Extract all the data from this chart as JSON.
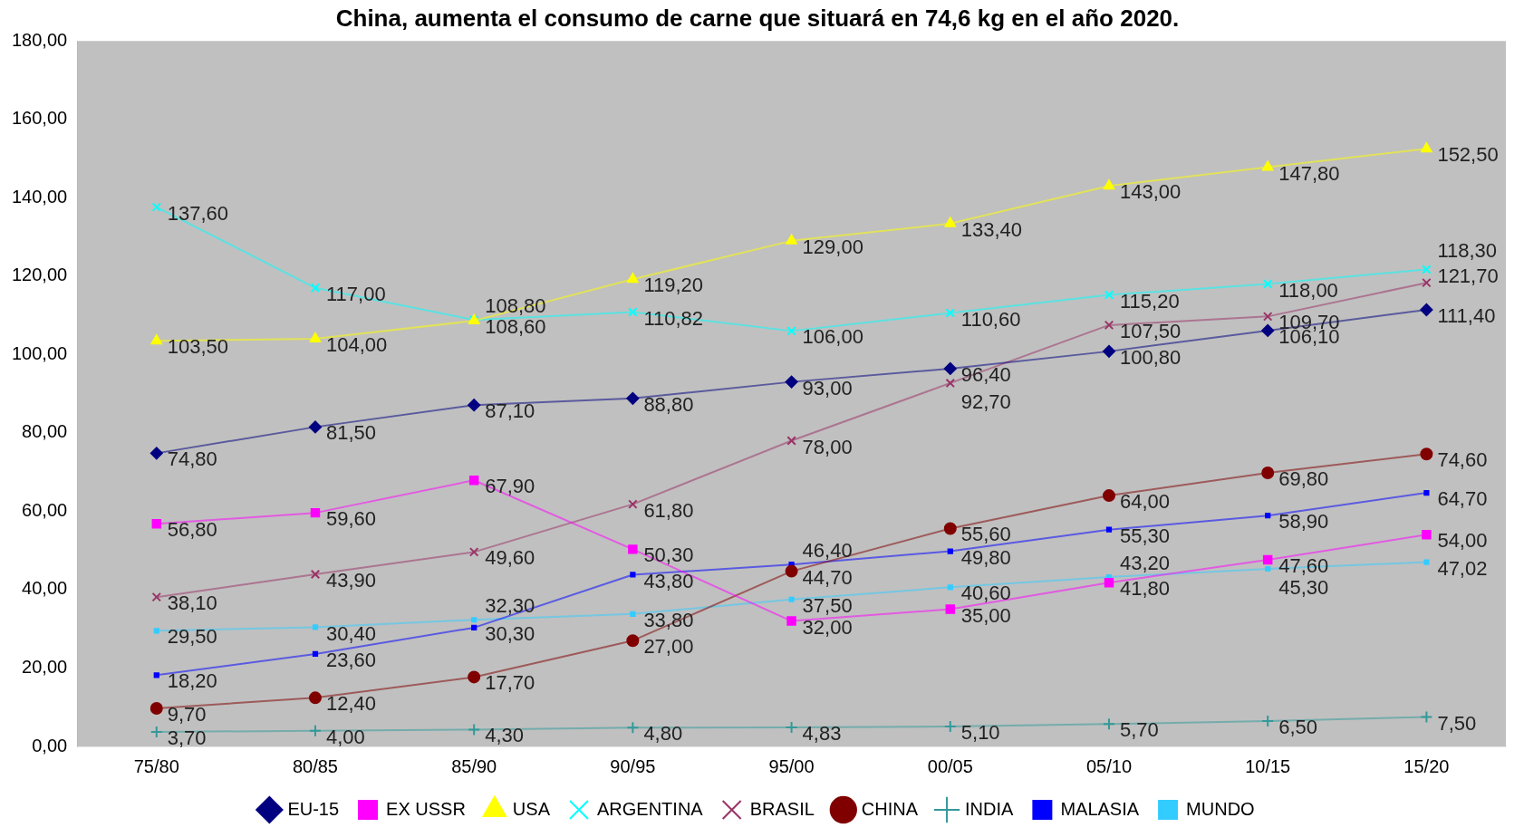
{
  "chart_data": {
    "type": "line",
    "title": "China, aumenta el consumo de carne que situará en 74,6 kg en el año 2020.",
    "categories": [
      "75/80",
      "80/85",
      "85/90",
      "90/95",
      "95/00",
      "00/05",
      "05/10",
      "10/15",
      "15/20"
    ],
    "ylim": [
      0,
      180
    ],
    "yticks": [
      {
        "value": 0,
        "label": "0,00"
      },
      {
        "value": 20,
        "label": "20,00"
      },
      {
        "value": 40,
        "label": "40,00"
      },
      {
        "value": 60,
        "label": "60,00"
      },
      {
        "value": 80,
        "label": "80,00"
      },
      {
        "value": 100,
        "label": "100,00"
      },
      {
        "value": 120,
        "label": "120,00"
      },
      {
        "value": 140,
        "label": "140,00"
      },
      {
        "value": 160,
        "label": "160,00"
      },
      {
        "value": 180,
        "label": "180,00"
      }
    ],
    "grid": false,
    "legend": "bottom",
    "line_style": "solid",
    "series": [
      {
        "name": "EU-15",
        "color": "#000080",
        "marker": "diamond",
        "values": [
          74.8,
          81.5,
          87.1,
          88.8,
          93.0,
          96.4,
          100.8,
          106.1,
          111.4
        ],
        "value_labels": [
          "74,80",
          "81,50",
          "87,10",
          "88,80",
          "93,00",
          "96,40",
          "100,80",
          "106,10",
          "111,40"
        ]
      },
      {
        "name": "EX USSR",
        "color": "#ff00ff",
        "marker": "square",
        "values": [
          56.8,
          59.6,
          67.9,
          50.3,
          32.0,
          35.0,
          41.8,
          47.6,
          54.0
        ],
        "value_labels": [
          "56,80",
          "59,60",
          "67,90",
          "50,30",
          "32,00",
          "35,00",
          "41,80",
          "47,60",
          "54,00"
        ]
      },
      {
        "name": "USA",
        "color": "#ffff00",
        "marker": "triangle",
        "values": [
          103.5,
          104.0,
          108.6,
          119.2,
          129.0,
          133.4,
          143.0,
          147.8,
          152.5
        ],
        "value_labels": [
          "103,50",
          "104,00",
          "108,60",
          "119,20",
          "129,00",
          "133,40",
          "143,00",
          "147,80",
          "152,50"
        ]
      },
      {
        "name": "ARGENTINA",
        "color": "#00ffff",
        "marker": "cross",
        "values": [
          137.6,
          117.0,
          108.8,
          110.82,
          106.0,
          110.6,
          115.2,
          118.0,
          121.7
        ],
        "value_labels": [
          "137,60",
          "117,00",
          "108,80",
          "110,82",
          "106,00",
          "110,60",
          "115,20",
          "118,00",
          "121,70"
        ]
      },
      {
        "name": "BRASIL",
        "color": "#993366",
        "marker": "cross",
        "values": [
          38.1,
          43.9,
          49.6,
          61.8,
          78.0,
          92.7,
          107.5,
          109.7,
          118.3
        ],
        "value_labels": [
          "38,10",
          "43,90",
          "49,60",
          "61,80",
          "78,00",
          "92,70",
          "107,50",
          "109,70",
          "118,30"
        ]
      },
      {
        "name": "CHINA",
        "color": "#800000",
        "marker": "circle",
        "values": [
          9.7,
          12.4,
          17.7,
          27.0,
          44.7,
          55.6,
          64.0,
          69.8,
          74.6
        ],
        "value_labels": [
          "9,70",
          "12,40",
          "17,70",
          "27,00",
          "44,70",
          "55,60",
          "64,00",
          "69,80",
          "74,60"
        ]
      },
      {
        "name": "INDIA",
        "color": "#339999",
        "marker": "plus",
        "values": [
          3.7,
          4.0,
          4.3,
          4.8,
          4.83,
          5.1,
          5.7,
          6.5,
          7.5
        ],
        "value_labels": [
          "3,70",
          "4,00",
          "4,30",
          "4,80",
          "4,83",
          "5,10",
          "5,70",
          "6,50",
          "7,50"
        ]
      },
      {
        "name": "MALASIA",
        "color": "#0000ff",
        "marker": "square",
        "values": [
          18.2,
          23.6,
          30.3,
          43.8,
          46.4,
          49.8,
          55.3,
          58.9,
          64.7
        ],
        "value_labels": [
          "18,20",
          "23,60",
          "30,30",
          "43,80",
          "46,40",
          "49,80",
          "55,30",
          "58,90",
          "64,70"
        ]
      },
      {
        "name": "MUNDO",
        "color": "#33ccff",
        "marker": "square",
        "values": [
          29.5,
          30.4,
          32.3,
          33.8,
          37.5,
          40.6,
          43.2,
          45.3,
          47.02
        ],
        "value_labels": [
          "29,50",
          "30,40",
          "32,30",
          "33,80",
          "37,50",
          "40,60",
          "43,20",
          "45,30",
          "47,02"
        ]
      }
    ]
  }
}
